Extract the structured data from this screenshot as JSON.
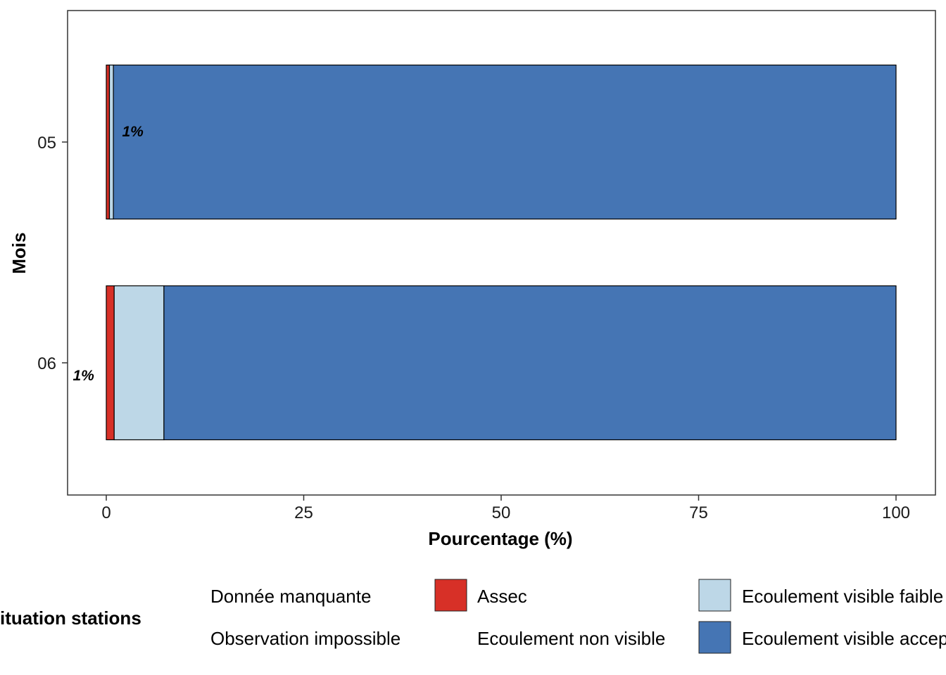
{
  "chart_data": {
    "type": "bar",
    "orientation": "horizontal",
    "stacked": true,
    "categories": [
      "05",
      "06"
    ],
    "xlabel": "Pourcentage (%)",
    "ylabel": "Mois",
    "xlim": [
      0,
      100
    ],
    "x_ticks": [
      "0",
      "25",
      "50",
      "75",
      "100"
    ],
    "grid": false,
    "legend_position": "bottom",
    "legend_title": "Situation stations",
    "legend_title_visible": "ituation stations",
    "series": [
      {
        "name": "Donnée manquante",
        "color": "#ffffff",
        "values": [
          0,
          0
        ]
      },
      {
        "name": "Observation impossible",
        "color": "#ffffff",
        "values": [
          0,
          0
        ]
      },
      {
        "name": "Assec",
        "color": "#D73027",
        "values": [
          0.4,
          1.0
        ]
      },
      {
        "name": "Ecoulement non visible",
        "color": "#ffffff",
        "values": [
          0,
          0
        ]
      },
      {
        "name": "Ecoulement visible faible",
        "color": "#BDD7E7",
        "values": [
          0.5,
          6.3
        ]
      },
      {
        "name": "Ecoulement visible acceptable",
        "color": "#4575B4",
        "values": [
          99.1,
          92.7
        ]
      }
    ],
    "annotations": [
      {
        "category": "05",
        "text": "1%",
        "x": 2.0
      },
      {
        "category": "06",
        "text": "1%",
        "x": -2.1
      }
    ]
  }
}
